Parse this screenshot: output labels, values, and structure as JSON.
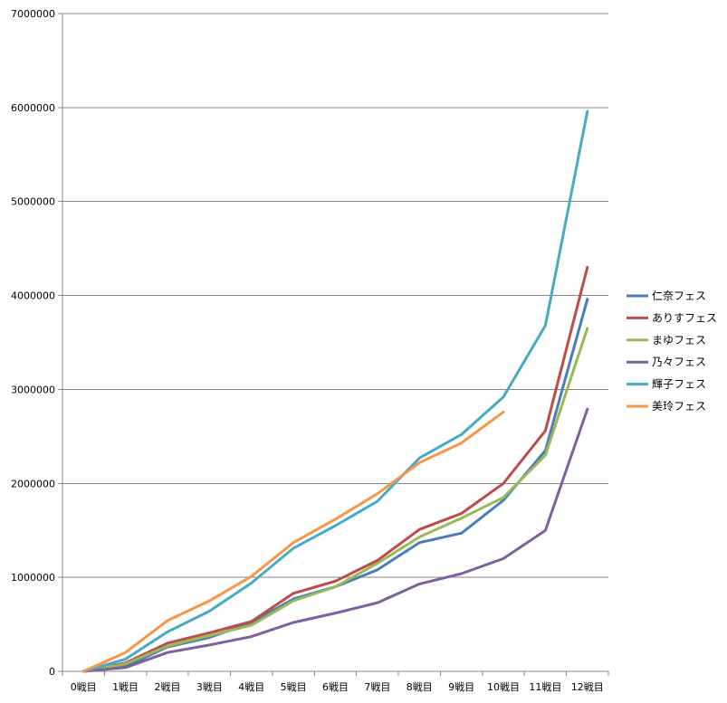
{
  "chart_data": {
    "type": "line",
    "title": "",
    "xlabel": "",
    "ylabel": "",
    "categories": [
      "0戦目",
      "1戦目",
      "2戦目",
      "3戦目",
      "4戦目",
      "5戦目",
      "6戦目",
      "7戦目",
      "8戦目",
      "9戦目",
      "10戦目",
      "11戦目",
      "12戦目"
    ],
    "ylim": [
      0,
      7000000
    ],
    "yticks": [
      "0",
      "1000000",
      "2000000",
      "3000000",
      "4000000",
      "5000000",
      "6000000",
      "7000000"
    ],
    "grid": "horizontal",
    "legend_position": "right",
    "series": [
      {
        "name": "仁奈フェス",
        "color": "#4a7ebb",
        "values": [
          0,
          50000,
          260000,
          360000,
          520000,
          770000,
          900000,
          1080000,
          1370000,
          1470000,
          1820000,
          2350000,
          3960000
        ]
      },
      {
        "name": "ありすフェス",
        "color": "#be4b48",
        "values": [
          0,
          90000,
          300000,
          410000,
          530000,
          830000,
          960000,
          1180000,
          1510000,
          1680000,
          2000000,
          2560000,
          4300000
        ]
      },
      {
        "name": "まゆフェス",
        "color": "#98b954",
        "values": [
          0,
          80000,
          270000,
          380000,
          490000,
          750000,
          900000,
          1150000,
          1430000,
          1630000,
          1850000,
          2300000,
          3650000
        ]
      },
      {
        "name": "乃々フェス",
        "color": "#7d60a0",
        "values": [
          0,
          40000,
          200000,
          280000,
          370000,
          520000,
          620000,
          730000,
          930000,
          1040000,
          1200000,
          1500000,
          2790000
        ]
      },
      {
        "name": "輝子フェス",
        "color": "#46aac5",
        "values": [
          0,
          130000,
          420000,
          640000,
          940000,
          1310000,
          1550000,
          1810000,
          2270000,
          2520000,
          2920000,
          3680000,
          5960000
        ]
      },
      {
        "name": "美玲フェス",
        "color": "#f79646",
        "values": [
          0,
          200000,
          540000,
          750000,
          1010000,
          1370000,
          1620000,
          1890000,
          2220000,
          2430000,
          2760000,
          null,
          null
        ]
      }
    ]
  }
}
